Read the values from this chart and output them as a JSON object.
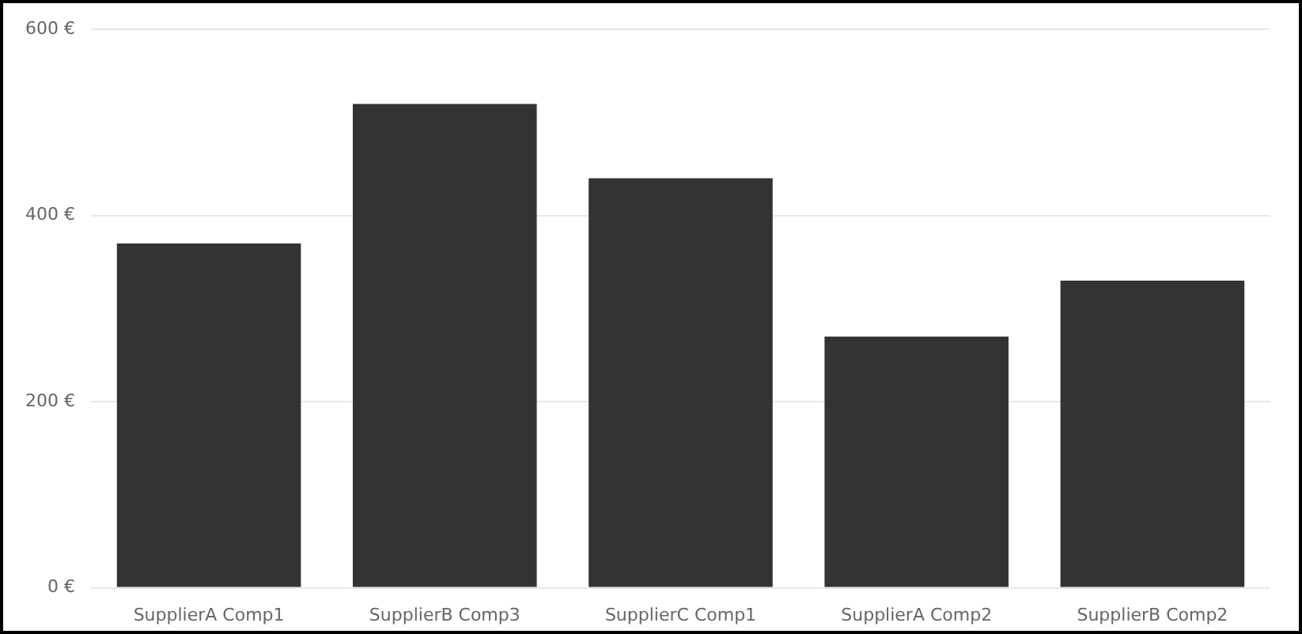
{
  "chart_data": {
    "type": "bar",
    "categories": [
      "SupplierA Comp1",
      "SupplierB Comp3",
      "SupplierC Comp1",
      "SupplierA Comp2",
      "SupplierB Comp2"
    ],
    "values": [
      370,
      520,
      440,
      270,
      330
    ],
    "color": "#333333",
    "ylim": [
      0,
      600
    ],
    "yticks": [
      {
        "value": 0,
        "label": "0 €"
      },
      {
        "value": 200,
        "label": "200 €"
      },
      {
        "value": 400,
        "label": "400 €"
      },
      {
        "value": 600,
        "label": "600 €"
      }
    ],
    "grid": "y",
    "legend": false
  }
}
